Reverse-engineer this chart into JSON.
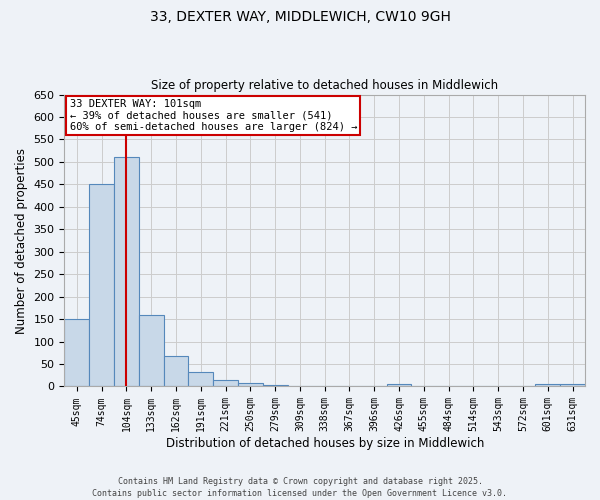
{
  "title_line1": "33, DEXTER WAY, MIDDLEWICH, CW10 9GH",
  "title_line2": "Size of property relative to detached houses in Middlewich",
  "xlabel": "Distribution of detached houses by size in Middlewich",
  "ylabel": "Number of detached properties",
  "categories": [
    "45sqm",
    "74sqm",
    "104sqm",
    "133sqm",
    "162sqm",
    "191sqm",
    "221sqm",
    "250sqm",
    "279sqm",
    "309sqm",
    "338sqm",
    "367sqm",
    "396sqm",
    "426sqm",
    "455sqm",
    "484sqm",
    "514sqm",
    "543sqm",
    "572sqm",
    "601sqm",
    "631sqm"
  ],
  "values": [
    150,
    450,
    510,
    160,
    68,
    32,
    14,
    8,
    4,
    0,
    0,
    0,
    0,
    5,
    0,
    0,
    0,
    0,
    0,
    5,
    5
  ],
  "bar_color": "#c8d8e8",
  "bar_edge_color": "#5588bb",
  "vline_x_index": 2,
  "vline_color": "#cc0000",
  "annotation_text": "33 DEXTER WAY: 101sqm\n← 39% of detached houses are smaller (541)\n60% of semi-detached houses are larger (824) →",
  "annotation_box_color": "#ffffff",
  "annotation_box_edge": "#cc0000",
  "ylim": [
    0,
    650
  ],
  "yticks": [
    0,
    50,
    100,
    150,
    200,
    250,
    300,
    350,
    400,
    450,
    500,
    550,
    600,
    650
  ],
  "grid_color": "#cccccc",
  "background_color": "#eef2f7",
  "footer_line1": "Contains HM Land Registry data © Crown copyright and database right 2025.",
  "footer_line2": "Contains public sector information licensed under the Open Government Licence v3.0."
}
